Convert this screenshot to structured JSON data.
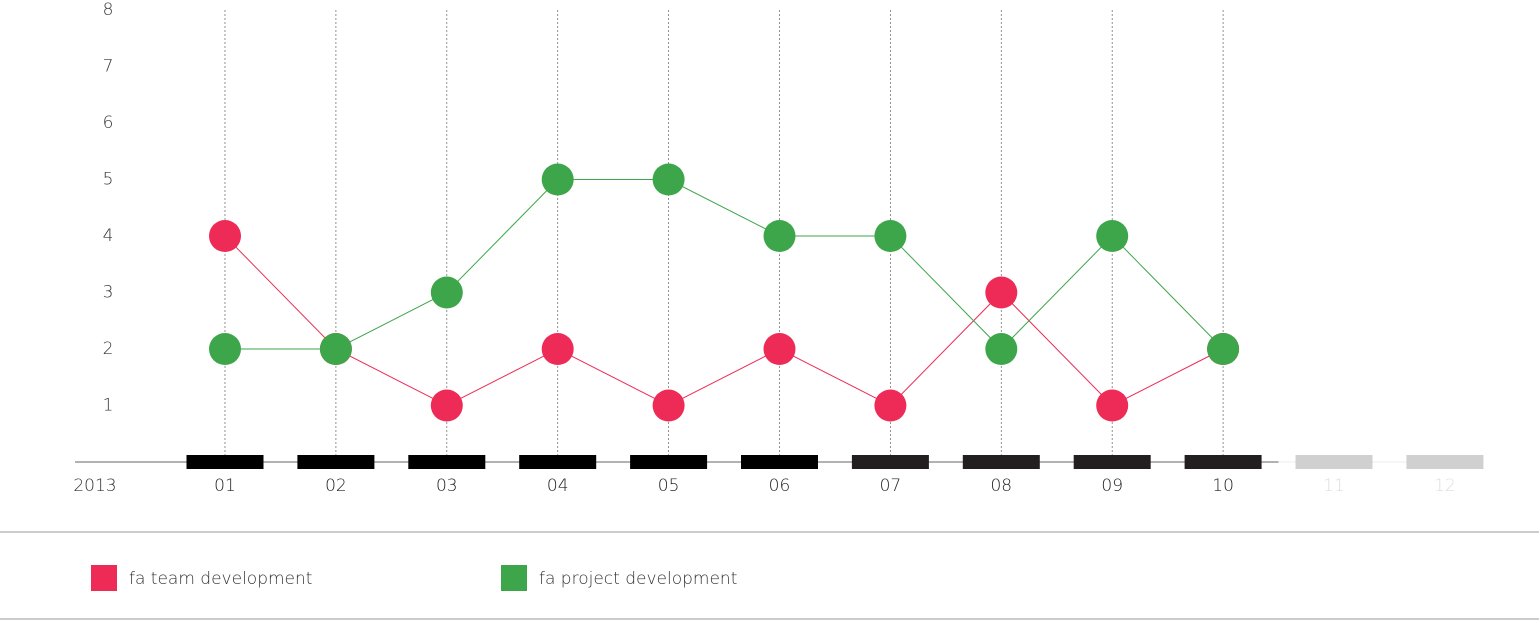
{
  "chart_data": {
    "type": "line",
    "year_label": "2013",
    "categories": [
      "01",
      "02",
      "03",
      "04",
      "05",
      "06",
      "07",
      "08",
      "09",
      "10",
      "11",
      "12"
    ],
    "category_colors": [
      "#000000",
      "#000000",
      "#000000",
      "#000000",
      "#000000",
      "#000000",
      "#231f20",
      "#231f20",
      "#231f20",
      "#231f20",
      "#d0d0d0",
      "#d0d0d0"
    ],
    "series": [
      {
        "name": "fa team development",
        "color": "#ee2a56",
        "values": [
          4,
          2,
          1,
          2,
          1,
          2,
          1,
          3,
          1,
          2,
          null,
          null
        ]
      },
      {
        "name": "fa project development",
        "color": "#3ea64a",
        "values": [
          2,
          2,
          3,
          5,
          5,
          4,
          4,
          2,
          4,
          2,
          null,
          null
        ]
      }
    ],
    "ylim": [
      0,
      8
    ],
    "yticks": [
      1,
      2,
      3,
      4,
      5,
      6,
      7,
      8
    ]
  }
}
